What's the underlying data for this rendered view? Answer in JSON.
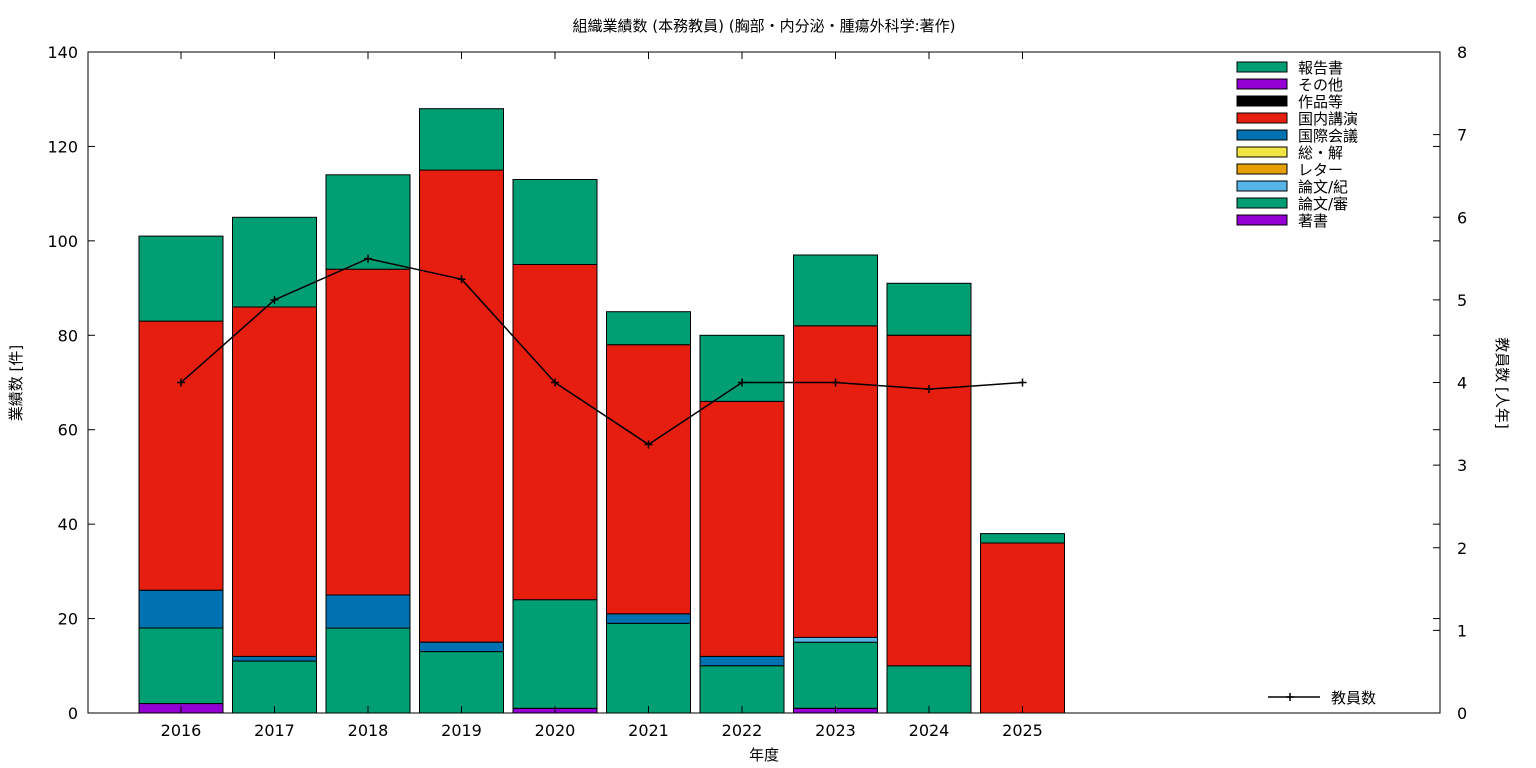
{
  "chart_data": {
    "type": "bar",
    "stacked": true,
    "title": "組織業績数 (本務教員) (胸部・内分泌・腫瘍外科学:著作)",
    "xlabel": "年度",
    "ylabel": "業績数 [件]",
    "y2label": "教員数 [人年]",
    "ylim": [
      0,
      140
    ],
    "y2lim": [
      0,
      8
    ],
    "yticks": [
      "0",
      "20",
      "40",
      "60",
      "80",
      "100",
      "120",
      "140"
    ],
    "y2ticks": [
      "0",
      "1",
      "2",
      "3",
      "4",
      "5",
      "6",
      "7",
      "8"
    ],
    "grid": false,
    "legend_position": "top-right",
    "categories": [
      "2016",
      "2017",
      "2018",
      "2019",
      "2020",
      "2021",
      "2022",
      "2023",
      "2024",
      "2025"
    ],
    "series": [
      {
        "name": "著書",
        "color": "#9400d3",
        "values": [
          2,
          0,
          0,
          0,
          1,
          0,
          0,
          1,
          0,
          0
        ]
      },
      {
        "name": "論文/審",
        "color": "#009e73",
        "values": [
          16,
          11,
          18,
          13,
          23,
          19,
          10,
          14,
          10,
          0
        ]
      },
      {
        "name": "論文/紀",
        "color": "#56b4e9",
        "values": [
          0,
          0,
          0,
          0,
          0,
          0,
          0,
          1,
          0,
          0
        ]
      },
      {
        "name": "レター",
        "color": "#e69f00",
        "values": [
          0,
          0,
          0,
          0,
          0,
          0,
          0,
          0,
          0,
          0
        ]
      },
      {
        "name": "総・解",
        "color": "#f0e442",
        "values": [
          0,
          0,
          0,
          0,
          0,
          0,
          0,
          0,
          0,
          0
        ]
      },
      {
        "name": "国際会議",
        "color": "#0072b2",
        "values": [
          8,
          1,
          7,
          2,
          0,
          2,
          2,
          0,
          0,
          0
        ]
      },
      {
        "name": "国内講演",
        "color": "#e51e10",
        "values": [
          57,
          74,
          69,
          100,
          71,
          57,
          54,
          66,
          70,
          36
        ]
      },
      {
        "name": "作品等",
        "color": "#000000",
        "values": [
          0,
          0,
          0,
          0,
          0,
          0,
          0,
          0,
          0,
          0
        ]
      },
      {
        "name": "その他",
        "color": "#9400d3",
        "values": [
          0,
          0,
          0,
          0,
          0,
          0,
          0,
          0,
          0,
          0
        ]
      },
      {
        "name": "報告書",
        "color": "#009e73",
        "values": [
          18,
          19,
          20,
          13,
          18,
          7,
          14,
          15,
          11,
          2
        ]
      }
    ],
    "legend_order": [
      "報告書",
      "その他",
      "作品等",
      "国内講演",
      "国際会議",
      "総・解",
      "レター",
      "論文/紀",
      "論文/審",
      "著書"
    ],
    "line_series": {
      "name": "教員数",
      "axis": "y2",
      "color": "#000000",
      "values": [
        4,
        5,
        5.5,
        5.25,
        4,
        3.25,
        4,
        4,
        3.92,
        4
      ]
    }
  }
}
